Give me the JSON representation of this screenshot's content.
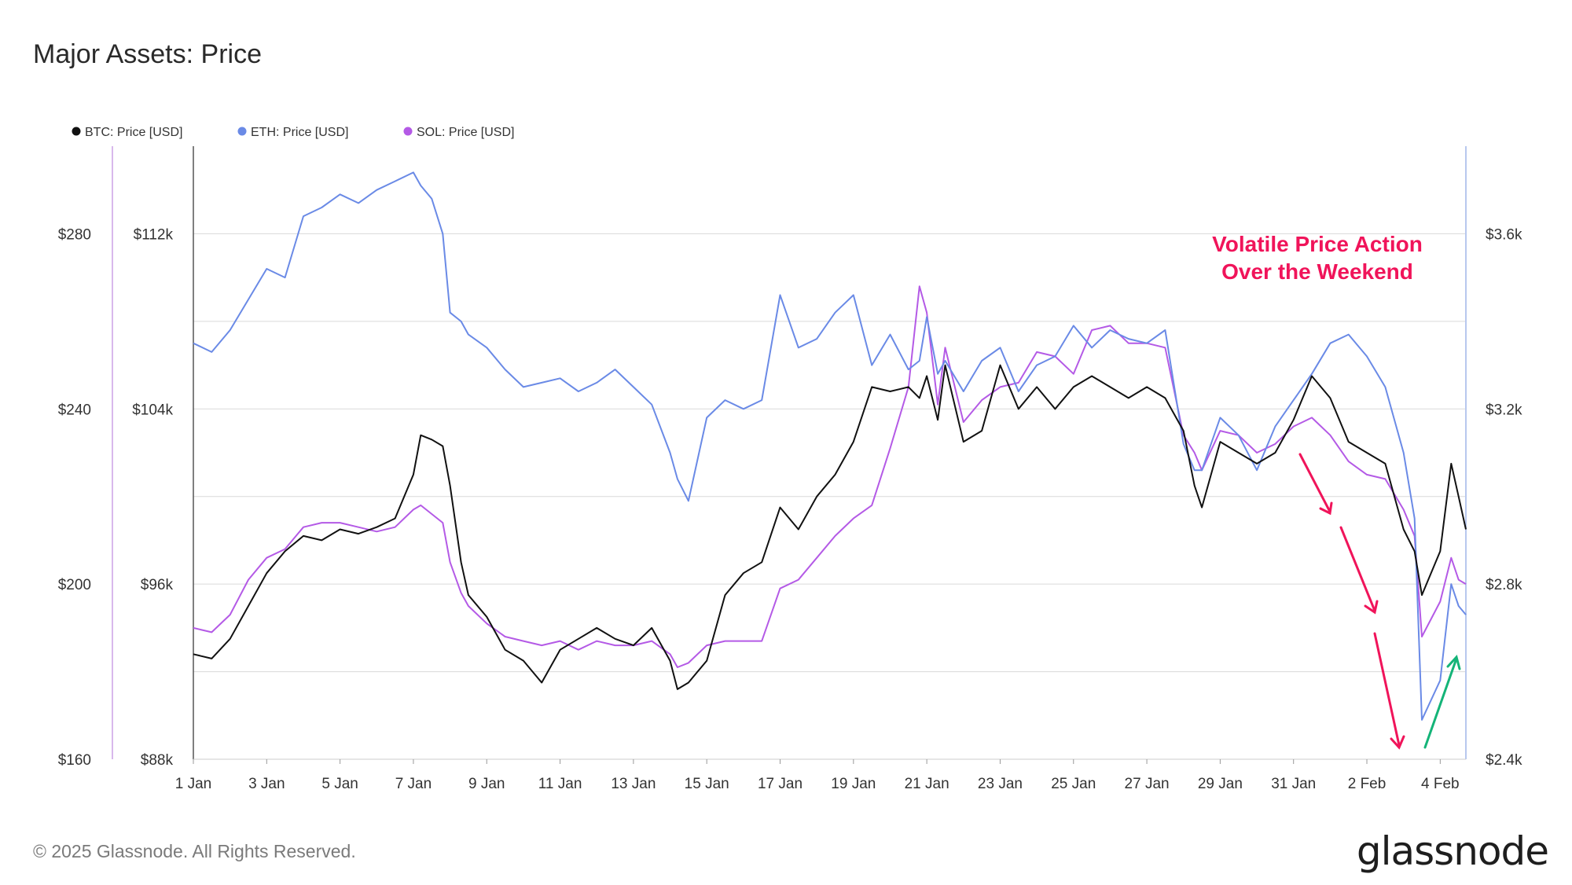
{
  "title": "Major Assets: Price",
  "footer": {
    "copyright": "© 2025 Glassnode. All Rights Reserved.",
    "logo": "glassnode"
  },
  "colors": {
    "btc": "#111111",
    "eth": "#6a8ae6",
    "sol": "#b45ae6",
    "annotation": "#f0145a",
    "up_arrow": "#14b478",
    "grid": "#d9d9d9"
  },
  "chart_data": {
    "type": "line",
    "title": "Major Assets: Price",
    "legend": [
      "BTC: Price [USD]",
      "ETH: Price [USD]",
      "SOL: Price [USD]"
    ],
    "legend_position": "top-left",
    "grid": true,
    "x_ticks": [
      "1 Jan",
      "3 Jan",
      "5 Jan",
      "7 Jan",
      "9 Jan",
      "11 Jan",
      "13 Jan",
      "15 Jan",
      "17 Jan",
      "19 Jan",
      "21 Jan",
      "23 Jan",
      "25 Jan",
      "27 Jan",
      "29 Jan",
      "31 Jan",
      "2 Feb",
      "4 Feb"
    ],
    "x_range_days": [
      0,
      34.7
    ],
    "axes": {
      "sol": {
        "side": "left-outer",
        "ticks": [
          "$160",
          "$200",
          "$240",
          "$280"
        ],
        "range": [
          160,
          300
        ]
      },
      "btc": {
        "side": "left-inner",
        "ticks": [
          "$88k",
          "$96k",
          "$104k",
          "$112k"
        ],
        "range": [
          88000,
          116000
        ]
      },
      "eth": {
        "side": "right",
        "ticks": [
          "$2.4k",
          "$2.8k",
          "$3.2k",
          "$3.6k"
        ],
        "range": [
          2400,
          3800
        ]
      }
    },
    "annotation": {
      "text_line1": "Volatile Price Action",
      "text_line2": "Over the Weekend"
    },
    "series": [
      {
        "name": "BTC: Price [USD]",
        "axis": "btc",
        "x": [
          0,
          0.5,
          1,
          1.5,
          2,
          2.5,
          3,
          3.5,
          4,
          4.5,
          5,
          5.5,
          6,
          6.2,
          6.5,
          6.8,
          7,
          7.3,
          7.5,
          8,
          8.5,
          9,
          9.5,
          10,
          10.5,
          11,
          11.5,
          12,
          12.5,
          13,
          13.2,
          13.5,
          14,
          14.5,
          15,
          15.5,
          16,
          16.5,
          17,
          17.5,
          18,
          18.5,
          19,
          19.5,
          19.8,
          20,
          20.3,
          20.5,
          21,
          21.5,
          22,
          22.5,
          23,
          23.5,
          24,
          24.5,
          25,
          25.5,
          26,
          26.5,
          27,
          27.3,
          27.5,
          28,
          28.5,
          29,
          29.5,
          30,
          30.5,
          31,
          31.5,
          32,
          32.5,
          33,
          33.3,
          33.5,
          34,
          34.3,
          34.5,
          34.7
        ],
        "y": [
          92800,
          92600,
          93500,
          95000,
          96500,
          97500,
          98200,
          98000,
          98500,
          98300,
          98600,
          99000,
          101000,
          102800,
          102600,
          102300,
          100500,
          97000,
          95500,
          94500,
          93000,
          92500,
          91500,
          93000,
          93500,
          94000,
          93500,
          93200,
          94000,
          92500,
          91200,
          91500,
          92500,
          95500,
          96500,
          97000,
          99500,
          98500,
          100000,
          101000,
          102500,
          105000,
          104800,
          105000,
          104500,
          105500,
          103500,
          106000,
          102500,
          103000,
          106000,
          104000,
          105000,
          104000,
          105000,
          105500,
          105000,
          104500,
          105000,
          104500,
          103000,
          100500,
          99500,
          102500,
          102000,
          101500,
          102000,
          103500,
          105500,
          104500,
          102500,
          102000,
          101500,
          98500,
          97500,
          95500,
          97500,
          101500,
          100000,
          98500
        ]
      },
      {
        "name": "ETH: Price [USD]",
        "axis": "eth",
        "x": [
          0,
          0.5,
          1,
          1.5,
          2,
          2.5,
          3,
          3.5,
          4,
          4.5,
          5,
          5.5,
          6,
          6.2,
          6.5,
          6.8,
          7,
          7.3,
          7.5,
          8,
          8.5,
          9,
          9.5,
          10,
          10.5,
          11,
          11.5,
          12,
          12.5,
          13,
          13.2,
          13.5,
          14,
          14.5,
          15,
          15.5,
          16,
          16.5,
          17,
          17.5,
          18,
          18.5,
          19,
          19.5,
          19.8,
          20,
          20.3,
          20.5,
          21,
          21.5,
          22,
          22.5,
          23,
          23.5,
          24,
          24.5,
          25,
          25.5,
          26,
          26.5,
          27,
          27.3,
          27.5,
          28,
          28.5,
          29,
          29.5,
          30,
          30.5,
          31,
          31.5,
          32,
          32.5,
          33,
          33.3,
          33.5,
          34,
          34.3,
          34.5,
          34.7
        ],
        "y": [
          3350,
          3330,
          3380,
          3450,
          3520,
          3500,
          3640,
          3660,
          3690,
          3670,
          3700,
          3720,
          3740,
          3710,
          3680,
          3600,
          3420,
          3400,
          3370,
          3340,
          3290,
          3250,
          3260,
          3270,
          3240,
          3260,
          3290,
          3250,
          3210,
          3100,
          3040,
          2990,
          3180,
          3220,
          3200,
          3220,
          3460,
          3340,
          3360,
          3420,
          3460,
          3300,
          3370,
          3290,
          3310,
          3410,
          3280,
          3310,
          3240,
          3310,
          3340,
          3240,
          3300,
          3320,
          3390,
          3340,
          3380,
          3360,
          3350,
          3380,
          3120,
          3060,
          3060,
          3180,
          3140,
          3060,
          3160,
          3220,
          3280,
          3350,
          3370,
          3320,
          3250,
          3100,
          2950,
          2490,
          2580,
          2800,
          2750,
          2730
        ]
      },
      {
        "name": "SOL: Price [USD]",
        "axis": "sol",
        "x": [
          0,
          0.5,
          1,
          1.5,
          2,
          2.5,
          3,
          3.5,
          4,
          4.5,
          5,
          5.5,
          6,
          6.2,
          6.5,
          6.8,
          7,
          7.3,
          7.5,
          8,
          8.5,
          9,
          9.5,
          10,
          10.5,
          11,
          11.5,
          12,
          12.5,
          13,
          13.2,
          13.5,
          14,
          14.5,
          15,
          15.5,
          16,
          16.5,
          17,
          17.5,
          18,
          18.5,
          19,
          19.5,
          19.8,
          20,
          20.3,
          20.5,
          21,
          21.5,
          22,
          22.5,
          23,
          23.5,
          24,
          24.5,
          25,
          25.5,
          26,
          26.5,
          27,
          27.3,
          27.5,
          28,
          28.5,
          29,
          29.5,
          30,
          30.5,
          31,
          31.5,
          32,
          32.5,
          33,
          33.3,
          33.5,
          34,
          34.3,
          34.5,
          34.7
        ],
        "y": [
          190,
          189,
          193,
          201,
          206,
          208,
          213,
          214,
          214,
          213,
          212,
          213,
          217,
          218,
          216,
          214,
          205,
          198,
          195,
          191,
          188,
          187,
          186,
          187,
          185,
          187,
          186,
          186,
          187,
          184,
          181,
          182,
          186,
          187,
          187,
          187,
          199,
          201,
          206,
          211,
          215,
          218,
          231,
          245,
          268,
          262,
          241,
          254,
          237,
          242,
          245,
          246,
          253,
          252,
          248,
          258,
          259,
          255,
          255,
          254,
          234,
          230,
          226,
          235,
          234,
          230,
          232,
          236,
          238,
          234,
          228,
          225,
          224,
          217,
          211,
          188,
          196,
          206,
          201,
          200
        ]
      }
    ]
  }
}
